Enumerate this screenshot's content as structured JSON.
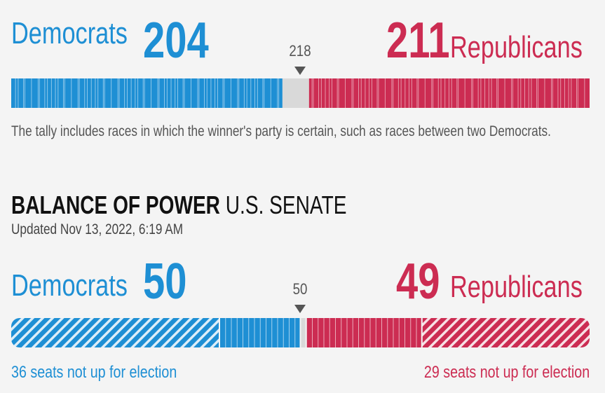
{
  "house": {
    "dem_label": "Democrats",
    "dem_value": "204",
    "rep_label": "Republicans",
    "rep_value": "211",
    "threshold_label": "218",
    "note": "The tally includes races in which the winner's party is certain, such as races between two Democrats."
  },
  "senate": {
    "heading_bold": "BALANCE OF POWER",
    "heading_rest": "U.S. SENATE",
    "updated": "Updated Nov 13, 2022, 6:19 AM",
    "dem_label": "Democrats",
    "dem_value": "50",
    "rep_label": "Republicans",
    "rep_value": "49",
    "threshold_label": "50",
    "dem_not_up": "36 seats not up for election",
    "rep_not_up": "29 seats not up for election"
  },
  "colors": {
    "dem": "#1e8fd4",
    "rep": "#cc2c52",
    "undecided": "#d9d9d9"
  },
  "chart_data": [
    {
      "type": "bar",
      "title": "",
      "categories": [
        "Democrats",
        "Undecided",
        "Republicans"
      ],
      "total": 435,
      "majority": 218,
      "values": [
        204,
        20,
        211
      ]
    },
    {
      "type": "bar",
      "title": "BALANCE OF POWER U.S. SENATE",
      "categories": [
        "Democrats not up",
        "Democrats won",
        "Undecided",
        "Republicans won",
        "Republicans not up"
      ],
      "total": 100,
      "majority": 50,
      "values": [
        36,
        14,
        1,
        20,
        29
      ]
    }
  ]
}
